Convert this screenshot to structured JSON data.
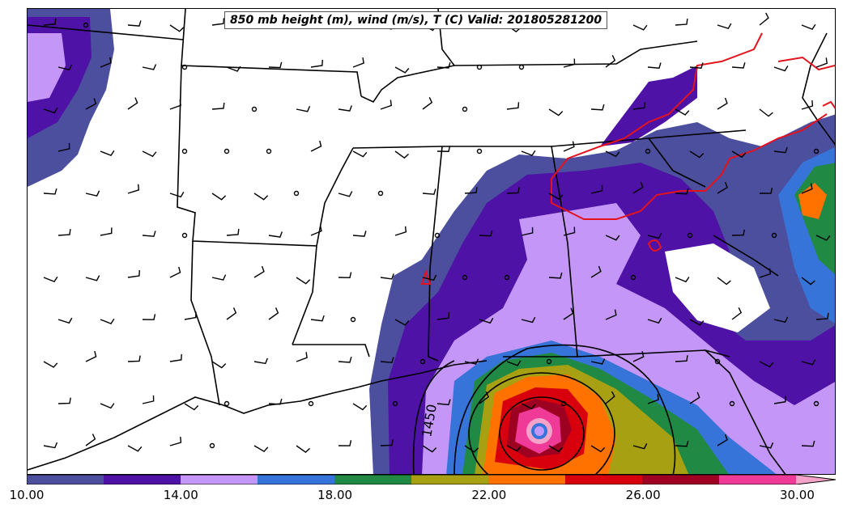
{
  "title": "850 mb height (m), wind (m/s), T (C) Valid: 201805281200",
  "contour_label": "1450",
  "colorbar": {
    "ticks": [
      "10.00",
      "14.00",
      "18.00",
      "22.00",
      "26.00",
      "30.00"
    ],
    "min": 10,
    "max": 31,
    "colors": [
      "#4b4f9e",
      "#4f12a6",
      "#c496f7",
      "#3774d9",
      "#208a45",
      "#a8a013",
      "#ff7200",
      "#d8000d",
      "#9e0022",
      "#ef3a98",
      "#f5a3c9"
    ]
  },
  "colors": {
    "state_lines": "#000000",
    "temp_contour": "#e3121d",
    "height_contour": "#000000"
  }
}
